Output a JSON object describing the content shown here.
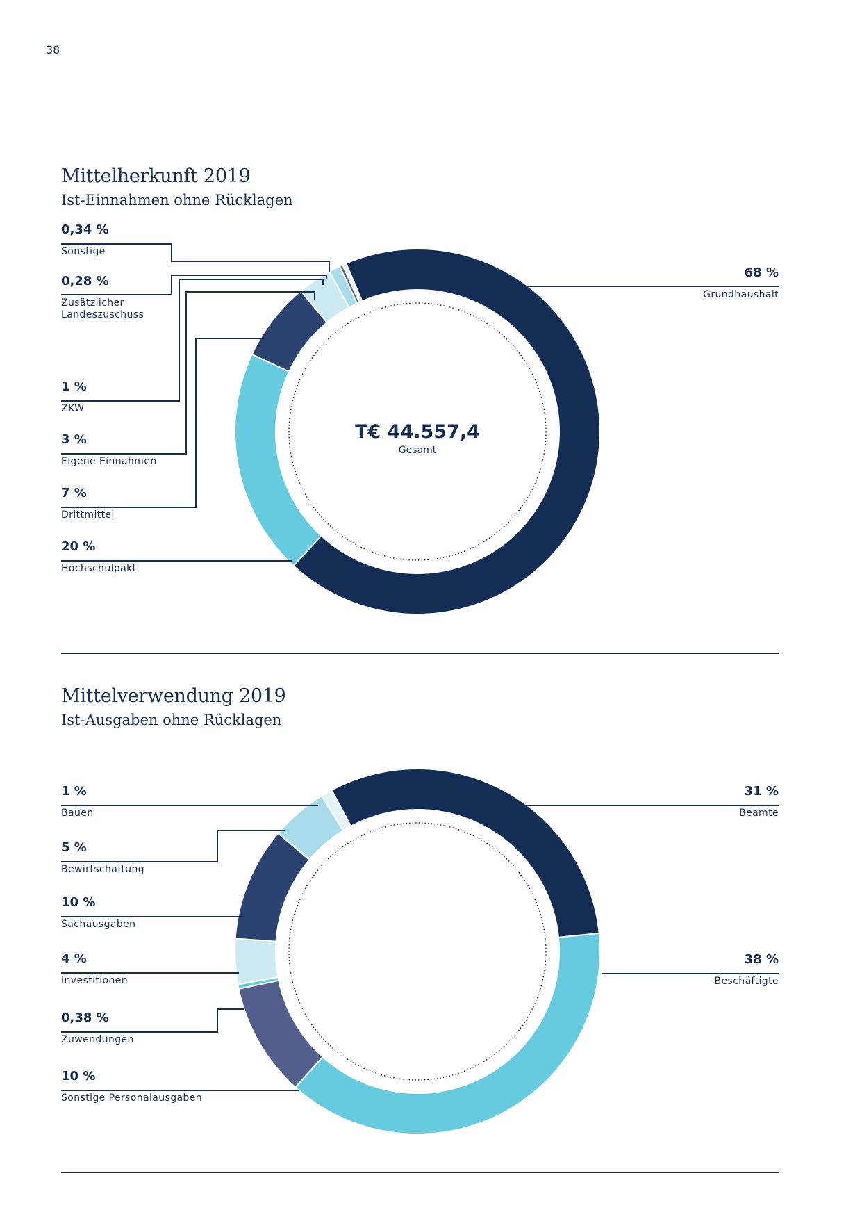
{
  "page_number": "38",
  "chart_data": [
    {
      "type": "donut",
      "title": "Mittelherkunft 2019",
      "subtitle": "Ist-Einnahmen ohne Rücklagen",
      "center_value": "T€ 44.557,4",
      "center_label": "Gesamt",
      "slices": [
        {
          "label": "Grundhaushalt",
          "percent_label": "68 %",
          "value": 68.0,
          "color": "#132d55"
        },
        {
          "label": "Hochschulpakt",
          "percent_label": "20 %",
          "value": 20.0,
          "color": "#67cbe0"
        },
        {
          "label": "Drittmittel",
          "percent_label": "7 %",
          "value": 7.0,
          "color": "#2c4270"
        },
        {
          "label": "Eigene Einnahmen",
          "percent_label": "3 %",
          "value": 3.0,
          "color": "#cdeaf3"
        },
        {
          "label": "ZKW",
          "percent_label": "1 %",
          "value": 1.0,
          "color": "#a9dcea"
        },
        {
          "label": "Zusätzlicher Landeszuschuss",
          "percent_label": "0,28 %",
          "value": 0.28,
          "color": "#53658f"
        },
        {
          "label": "Sonstige",
          "percent_label": "0,34 %",
          "value": 0.34,
          "color": "#e3f3f8"
        }
      ]
    },
    {
      "type": "donut",
      "title": "Mittelverwendung 2019",
      "subtitle": "Ist-Ausgaben ohne Rücklagen",
      "slices": [
        {
          "label": "Beamte",
          "percent_label": "31 %",
          "value": 31.0,
          "color": "#132d55"
        },
        {
          "label": "Beschäftigte",
          "percent_label": "38 %",
          "value": 38.0,
          "color": "#67cbe0"
        },
        {
          "label": "Sonstige Personalausgaben",
          "percent_label": "10 %",
          "value": 10.0,
          "color": "#525f8c"
        },
        {
          "label": "Zuwendungen",
          "percent_label": "0,38 %",
          "value": 0.38,
          "color": "#67cbe0"
        },
        {
          "label": "Investitionen",
          "percent_label": "4 %",
          "value": 4.0,
          "color": "#cdeaf3"
        },
        {
          "label": "Sachausgaben",
          "percent_label": "10 %",
          "value": 10.0,
          "color": "#2c4270"
        },
        {
          "label": "Bewirtschaftung",
          "percent_label": "5 %",
          "value": 5.0,
          "color": "#a9dcea"
        },
        {
          "label": "Bauen",
          "percent_label": "1 %",
          "value": 1.0,
          "color": "#e3f3f8"
        }
      ]
    }
  ]
}
